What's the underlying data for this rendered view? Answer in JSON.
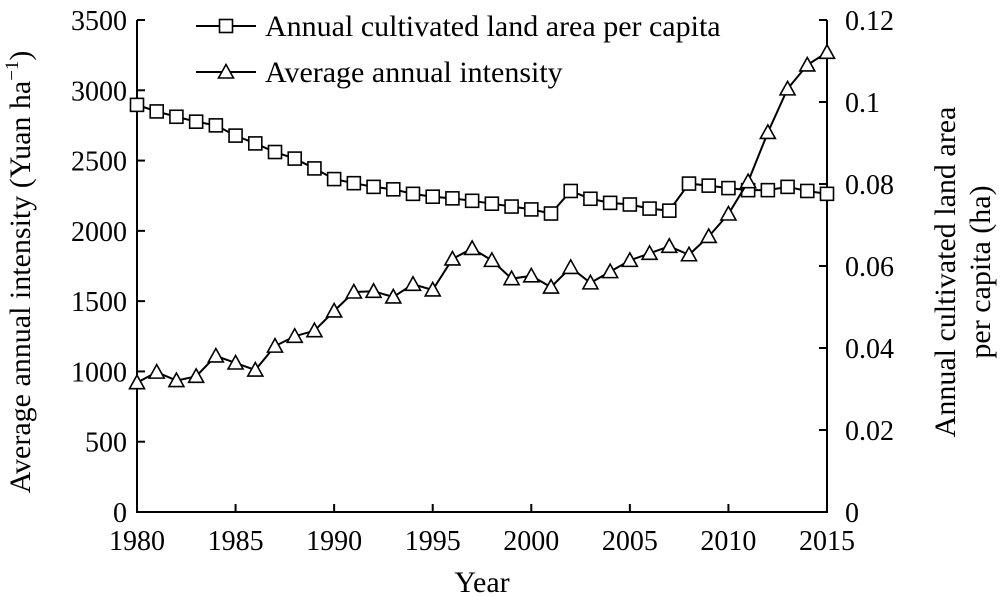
{
  "chart_data": {
    "type": "line",
    "title": "",
    "xlabel": "Year",
    "ylabel_left": "Average annual intensity (Yuan ha",
    "ylabel_left_sup": "−1",
    "ylabel_left_close": ")",
    "ylabel_right": [
      "Annual cultivated land area",
      "per capita (ha)"
    ],
    "xlim": [
      1980,
      2015
    ],
    "ylim_left": [
      0,
      3500
    ],
    "ylim_right": [
      0,
      0.12
    ],
    "x_ticks": [
      "1980",
      "1985",
      "1990",
      "1995",
      "2000",
      "2005",
      "2010",
      "2015"
    ],
    "y_left_ticks": [
      "0",
      "500",
      "1000",
      "1500",
      "2000",
      "2500",
      "3000",
      "3500"
    ],
    "y_right_ticks": [
      "0",
      "0.02",
      "0.04",
      "0.06",
      "0.08",
      "0.1",
      "0.12"
    ],
    "legend_position": "top",
    "x": [
      1980,
      1981,
      1982,
      1983,
      1984,
      1985,
      1986,
      1987,
      1988,
      1989,
      1990,
      1991,
      1992,
      1993,
      1994,
      1995,
      1996,
      1997,
      1998,
      1999,
      2000,
      2001,
      2002,
      2003,
      2004,
      2005,
      2006,
      2007,
      2008,
      2009,
      2010,
      2011,
      2012,
      2013,
      2014,
      2015
    ],
    "series": [
      {
        "name": "Annual cultivated land area per capita",
        "axis": "right",
        "marker": "square",
        "values": [
          0.0993,
          0.0977,
          0.0964,
          0.0952,
          0.0943,
          0.0918,
          0.0899,
          0.0878,
          0.0862,
          0.0838,
          0.0812,
          0.0802,
          0.0793,
          0.0787,
          0.0776,
          0.0769,
          0.0765,
          0.0759,
          0.0752,
          0.0745,
          0.0738,
          0.0728,
          0.0783,
          0.0764,
          0.0754,
          0.075,
          0.074,
          0.0735,
          0.0801,
          0.0796,
          0.079,
          0.0785,
          0.0785,
          0.0793,
          0.0783,
          0.0776
        ]
      },
      {
        "name": "Average annual intensity",
        "axis": "left",
        "marker": "triangle",
        "values": [
          920,
          995,
          935,
          965,
          1110,
          1060,
          1010,
          1180,
          1250,
          1290,
          1430,
          1565,
          1570,
          1530,
          1620,
          1580,
          1800,
          1875,
          1790,
          1660,
          1680,
          1600,
          1740,
          1630,
          1710,
          1790,
          1840,
          1890,
          1830,
          1960,
          2120,
          2350,
          2700,
          3010,
          3180,
          3270
        ]
      }
    ]
  }
}
